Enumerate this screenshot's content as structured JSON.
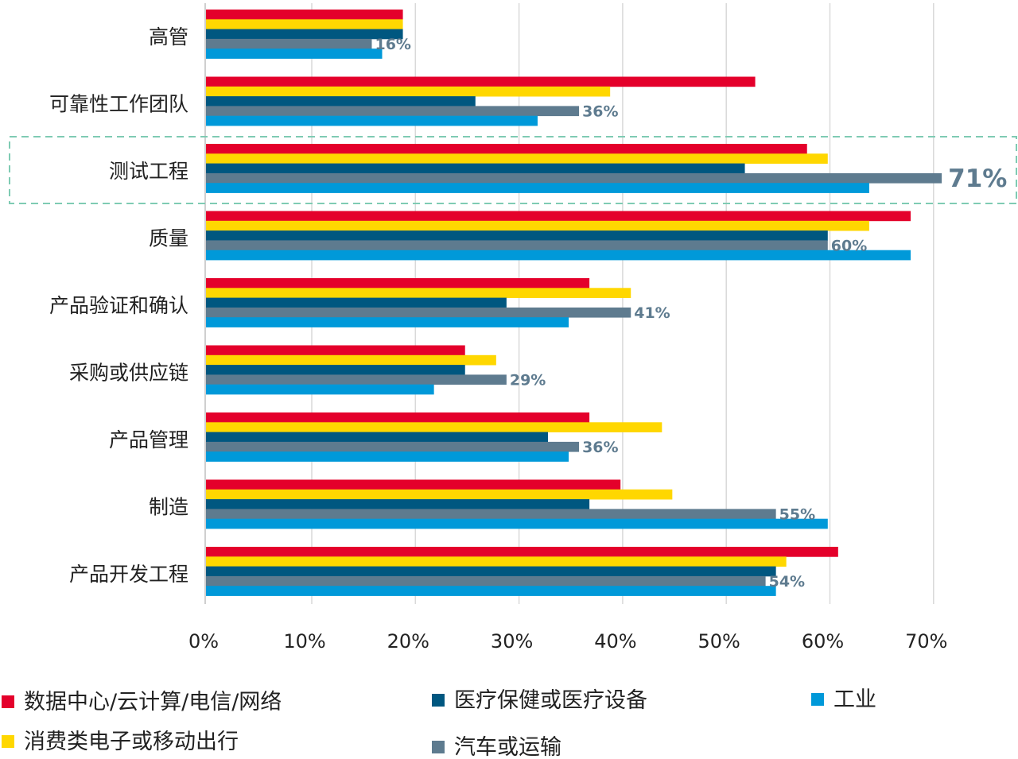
{
  "chart_data": {
    "type": "bar",
    "orientation": "horizontal",
    "categories": [
      "高管",
      "可靠性工作团队",
      "测试工程",
      "质量",
      "产品验证和确认",
      "采购或供应链",
      "产品管理",
      "制造",
      "产品开发工程"
    ],
    "series": [
      {
        "name": "数据中心/云计算/电信/网络",
        "color": "#e4002b",
        "values": [
          19,
          53,
          58,
          68,
          37,
          25,
          37,
          40,
          61
        ]
      },
      {
        "name": "消费类电子或移动出行",
        "color": "#ffd700",
        "values": [
          19,
          39,
          60,
          64,
          41,
          28,
          44,
          45,
          56
        ]
      },
      {
        "name": "医疗保健或医疗设备",
        "color": "#005780",
        "values": [
          19,
          26,
          52,
          60,
          29,
          25,
          33,
          37,
          55
        ]
      },
      {
        "name": "汽车或运输",
        "color": "#5e7b8f",
        "values": [
          16,
          36,
          71,
          60,
          41,
          29,
          36,
          55,
          54
        ]
      },
      {
        "name": "工业",
        "color": "#0099d9",
        "values": [
          17,
          32,
          64,
          68,
          35,
          22,
          35,
          60,
          55
        ]
      }
    ],
    "data_labels": [
      "16%",
      "36%",
      "71%",
      "60%",
      "41%",
      "29%",
      "36%",
      "55%",
      "54%"
    ],
    "labeled_series": "汽车或运输",
    "highlighted_category": "测试工程",
    "x_ticks": [
      "0%",
      "10%",
      "20%",
      "30%",
      "40%",
      "50%",
      "60%",
      "70%"
    ],
    "xlim": [
      0,
      77
    ],
    "grid": true,
    "legend_position": "bottom",
    "xlabel": "",
    "ylabel": ""
  }
}
